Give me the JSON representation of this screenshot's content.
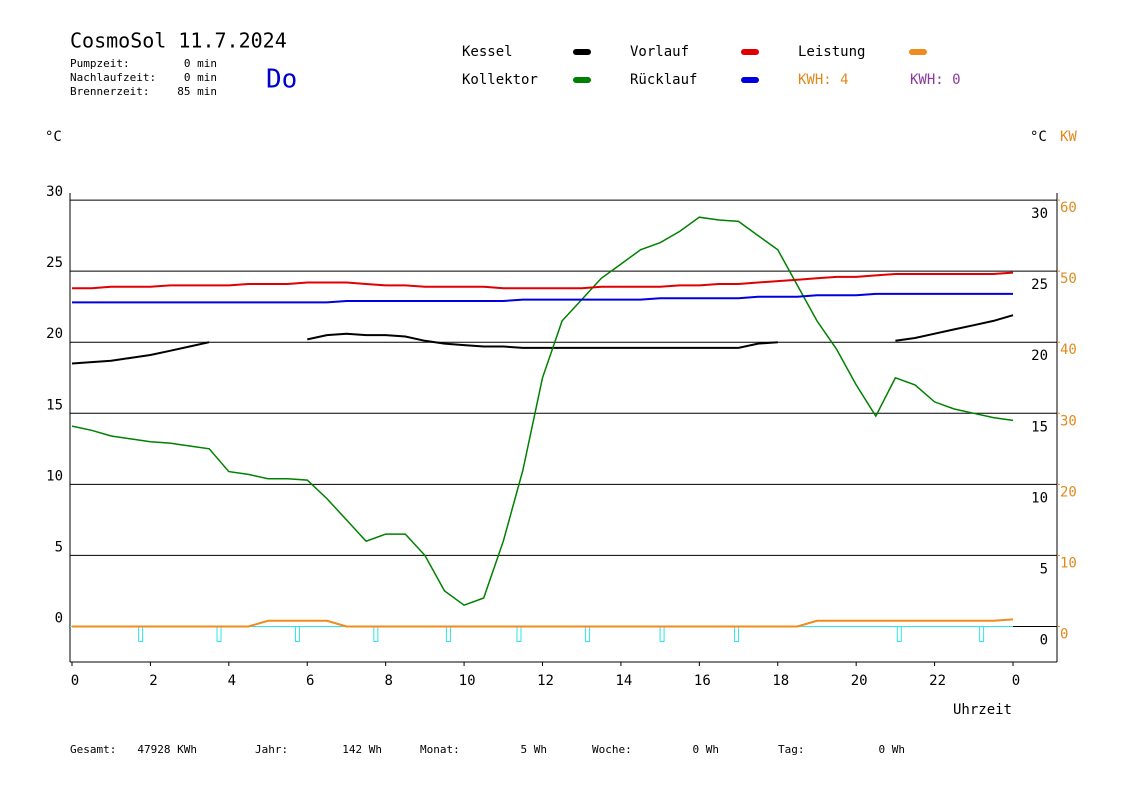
{
  "header": {
    "title": "CosmoSol 11.7.2024",
    "day": "Do",
    "info": [
      {
        "label": "Pumpzeit:",
        "value": "0 min"
      },
      {
        "label": "Nachlaufzeit:",
        "value": "0 min"
      },
      {
        "label": "Brennerzeit:",
        "value": "85 min"
      }
    ]
  },
  "chart_data": {
    "type": "line",
    "y_unit": "°C",
    "y2_unit": "KW",
    "xlabel": "Uhrzeit",
    "x": [
      0,
      0.5,
      1,
      1.5,
      2,
      2.5,
      3,
      3.5,
      4,
      4.5,
      5,
      5.5,
      6,
      6.5,
      7,
      7.5,
      8,
      8.5,
      9,
      9.5,
      10,
      10.5,
      11,
      11.5,
      12,
      12.5,
      13,
      13.5,
      14,
      14.5,
      15,
      15.5,
      16,
      16.5,
      17,
      17.5,
      18,
      18.5,
      19,
      19.5,
      20,
      20.5,
      21,
      21.5,
      22,
      22.5,
      23,
      23.5,
      24
    ],
    "series": [
      {
        "name": "Kessel",
        "color": "#000000",
        "values": [
          18.5,
          18.6,
          18.7,
          18.9,
          19.1,
          19.4,
          19.7,
          20.0,
          null,
          null,
          null,
          null,
          20.2,
          20.5,
          20.6,
          20.5,
          20.5,
          20.4,
          20.1,
          19.9,
          19.8,
          19.7,
          19.7,
          19.6,
          19.6,
          19.6,
          19.6,
          19.6,
          19.6,
          19.6,
          19.6,
          19.6,
          19.6,
          19.6,
          19.6,
          19.9,
          20.0,
          null,
          null,
          null,
          null,
          null,
          20.1,
          20.3,
          20.6,
          20.9,
          21.2,
          21.5,
          21.9
        ]
      },
      {
        "name": "Kollektor",
        "color": "#008000",
        "values": [
          14.1,
          13.8,
          13.4,
          13.2,
          13.0,
          12.9,
          12.7,
          12.5,
          10.9,
          10.7,
          10.4,
          10.4,
          10.3,
          9.0,
          7.5,
          6.0,
          6.5,
          6.5,
          5.0,
          2.5,
          1.5,
          2.0,
          6.0,
          11.0,
          17.5,
          21.5,
          23.0,
          24.5,
          25.5,
          26.5,
          27.0,
          27.8,
          28.8,
          28.6,
          28.5,
          27.5,
          26.5,
          24.0,
          21.5,
          19.5,
          17.0,
          14.8,
          17.5,
          17.0,
          15.8,
          15.3,
          15.0,
          14.7,
          14.5
        ]
      },
      {
        "name": "Vorlauf",
        "color": "#e00000",
        "values": [
          23.8,
          23.8,
          23.9,
          23.9,
          23.9,
          24.0,
          24.0,
          24.0,
          24.0,
          24.1,
          24.1,
          24.1,
          24.2,
          24.2,
          24.2,
          24.1,
          24.0,
          24.0,
          23.9,
          23.9,
          23.9,
          23.9,
          23.8,
          23.8,
          23.8,
          23.8,
          23.8,
          23.9,
          23.9,
          23.9,
          23.9,
          24.0,
          24.0,
          24.1,
          24.1,
          24.2,
          24.3,
          24.4,
          24.5,
          24.6,
          24.6,
          24.7,
          24.8,
          24.8,
          24.8,
          24.8,
          24.8,
          24.8,
          24.9
        ]
      },
      {
        "name": "Rücklauf",
        "color": "#0000e0",
        "values": [
          22.8,
          22.8,
          22.8,
          22.8,
          22.8,
          22.8,
          22.8,
          22.8,
          22.8,
          22.8,
          22.8,
          22.8,
          22.8,
          22.8,
          22.9,
          22.9,
          22.9,
          22.9,
          22.9,
          22.9,
          22.9,
          22.9,
          22.9,
          23.0,
          23.0,
          23.0,
          23.0,
          23.0,
          23.0,
          23.0,
          23.1,
          23.1,
          23.1,
          23.1,
          23.1,
          23.2,
          23.2,
          23.2,
          23.3,
          23.3,
          23.3,
          23.4,
          23.4,
          23.4,
          23.4,
          23.4,
          23.4,
          23.4,
          23.4
        ]
      },
      {
        "name": "Leistung",
        "color": "#f08c1e",
        "axis": "y2",
        "values": [
          0,
          0,
          0,
          0,
          0,
          0,
          0,
          0,
          0,
          0,
          0.8,
          0.8,
          0.8,
          0.8,
          0,
          0,
          0,
          0,
          0,
          0,
          0,
          0,
          0,
          0,
          0,
          0,
          0,
          0,
          0,
          0,
          0,
          0,
          0,
          0,
          0,
          0,
          0,
          0,
          0.8,
          0.8,
          0.8,
          0.8,
          0.8,
          0.8,
          0.8,
          0.8,
          0.8,
          0.8,
          1.0
        ]
      }
    ],
    "pump_pulses": [
      1.75,
      3.75,
      5.75,
      7.75,
      9.6,
      11.4,
      13.15,
      15.05,
      16.95,
      21.1,
      23.2
    ],
    "pump_color": "#2ee6e6",
    "annotations": [
      {
        "text": "KWH: 4",
        "color": "#e08a1e"
      },
      {
        "text": "KWH: 0",
        "color": "#8b3a9b"
      }
    ],
    "xlim": [
      0,
      24
    ],
    "xticks": [
      0,
      2,
      4,
      6,
      8,
      10,
      12,
      14,
      16,
      18,
      20,
      22,
      {
        "value": 24,
        "label": "0"
      }
    ],
    "ylim": [
      -2.5,
      30.5
    ],
    "yticks": [
      0,
      5,
      10,
      15,
      20,
      25,
      30
    ],
    "y2lim": [
      -5,
      61
    ],
    "y2ticks": [
      0,
      10,
      20,
      30,
      40,
      50,
      60
    ],
    "y2_color": "#e08a1e",
    "grid": true
  },
  "footer": [
    {
      "label": "Gesamt:",
      "value": "47928 KWh"
    },
    {
      "label": "Jahr:",
      "value": "142 Wh"
    },
    {
      "label": "Monat:",
      "value": "5 Wh"
    },
    {
      "label": "Woche:",
      "value": "0 Wh"
    },
    {
      "label": "Tag:",
      "value": "0 Wh"
    }
  ]
}
